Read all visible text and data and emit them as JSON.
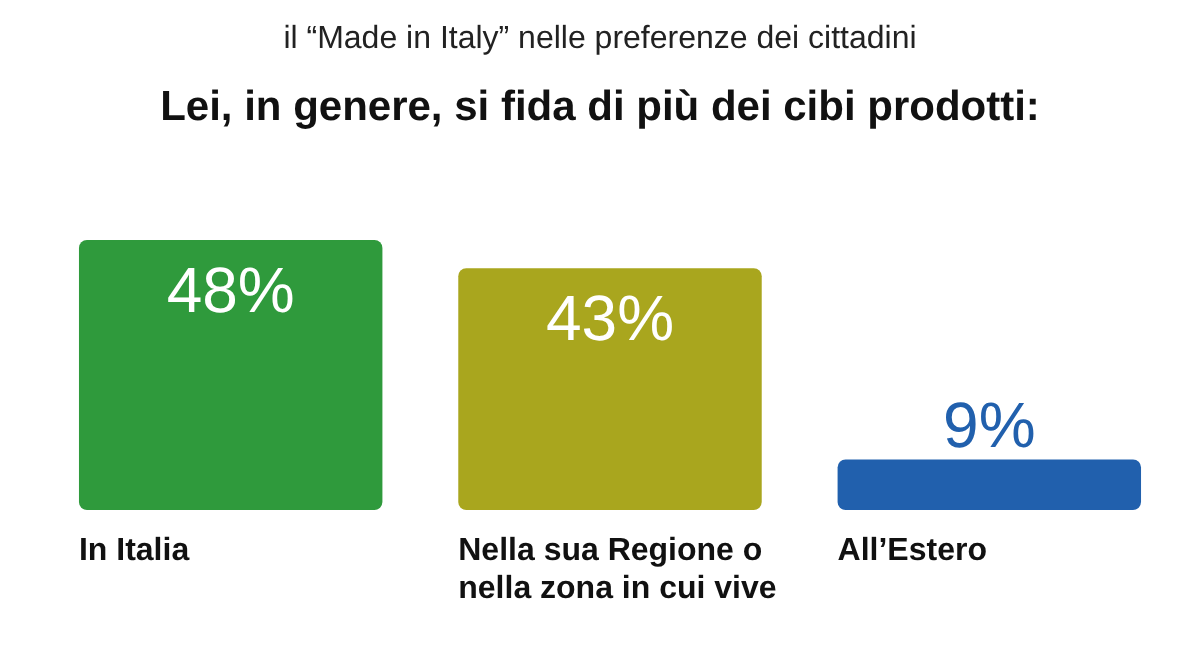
{
  "chart_data": {
    "type": "bar",
    "title": "il “Made in Italy” nelle preferenze dei cittadini",
    "subtitle": "Lei, in genere, si fida di più dei cibi prodotti:",
    "categories": [
      "In Italia",
      "Nella sua Regione o nella zona in cui vive",
      "All’Estero"
    ],
    "values": [
      48,
      43,
      9
    ],
    "colors": [
      "#2f9a3c",
      "#a9a61e",
      "#2160ad"
    ],
    "value_labels": [
      "48%",
      "43%",
      "9%"
    ]
  }
}
